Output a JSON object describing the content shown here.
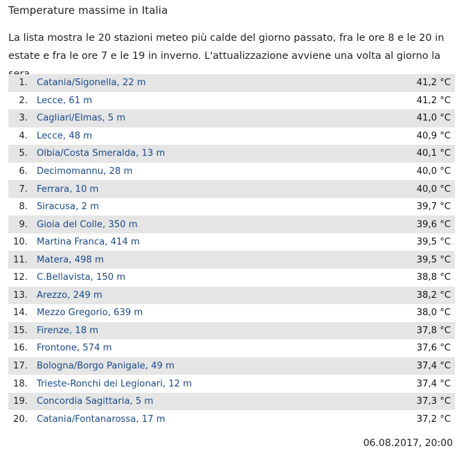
{
  "page": {
    "title": "Temperature massime in Italia",
    "intro": "La lista mostra le 20 stazioni meteo più calde del giorno passato, fra le ore 8 e le 20 in estate e fra le ore 7 e le 19 in inverno. L'attualizzazione avviene una volta al giorno la sera.",
    "timestamp": "06.08.2017, 20:00"
  },
  "stations": [
    {
      "rank": "1.",
      "name": "Catania/Sigonella, 22 m",
      "temp": "41,2 °C"
    },
    {
      "rank": "2.",
      "name": "Lecce, 61 m",
      "temp": "41,2 °C"
    },
    {
      "rank": "3.",
      "name": "Cagliari/Elmas, 5 m",
      "temp": "41,0 °C"
    },
    {
      "rank": "4.",
      "name": "Lecce, 48 m",
      "temp": "40,9 °C"
    },
    {
      "rank": "5.",
      "name": "Olbia/Costa Smeralda, 13 m",
      "temp": "40,1 °C"
    },
    {
      "rank": "6.",
      "name": "Decimomannu, 28 m",
      "temp": "40,0 °C"
    },
    {
      "rank": "7.",
      "name": "Ferrara, 10 m",
      "temp": "40,0 °C"
    },
    {
      "rank": "8.",
      "name": "Siracusa, 2 m",
      "temp": "39,7 °C"
    },
    {
      "rank": "9.",
      "name": "Gioia del Colle, 350 m",
      "temp": "39,6 °C"
    },
    {
      "rank": "10.",
      "name": "Martina Franca, 414 m",
      "temp": "39,5 °C"
    },
    {
      "rank": "11.",
      "name": "Matera, 498 m",
      "temp": "39,5 °C"
    },
    {
      "rank": "12.",
      "name": "C.Bellavista, 150 m",
      "temp": "38,8 °C"
    },
    {
      "rank": "13.",
      "name": "Arezzo, 249 m",
      "temp": "38,2 °C"
    },
    {
      "rank": "14.",
      "name": "Mezzo Gregorio, 639 m",
      "temp": "38,0 °C"
    },
    {
      "rank": "15.",
      "name": "Firenze, 18 m",
      "temp": "37,8 °C"
    },
    {
      "rank": "16.",
      "name": "Frontone, 574 m",
      "temp": "37,6 °C"
    },
    {
      "rank": "17.",
      "name": "Bologna/Borgo Panigale, 49 m",
      "temp": "37,4 °C"
    },
    {
      "rank": "18.",
      "name": "Trieste-Ronchi dei Legionari, 12 m",
      "temp": "37,4 °C"
    },
    {
      "rank": "19.",
      "name": "Concordia Sagittaria, 5 m",
      "temp": "37,3 °C"
    },
    {
      "rank": "20.",
      "name": "Catania/Fontanarossa, 17 m",
      "temp": "37,2 °C"
    }
  ],
  "colors": {
    "link": "#1a4a8a",
    "stripe": "#e5e5e5",
    "text": "#222222"
  }
}
